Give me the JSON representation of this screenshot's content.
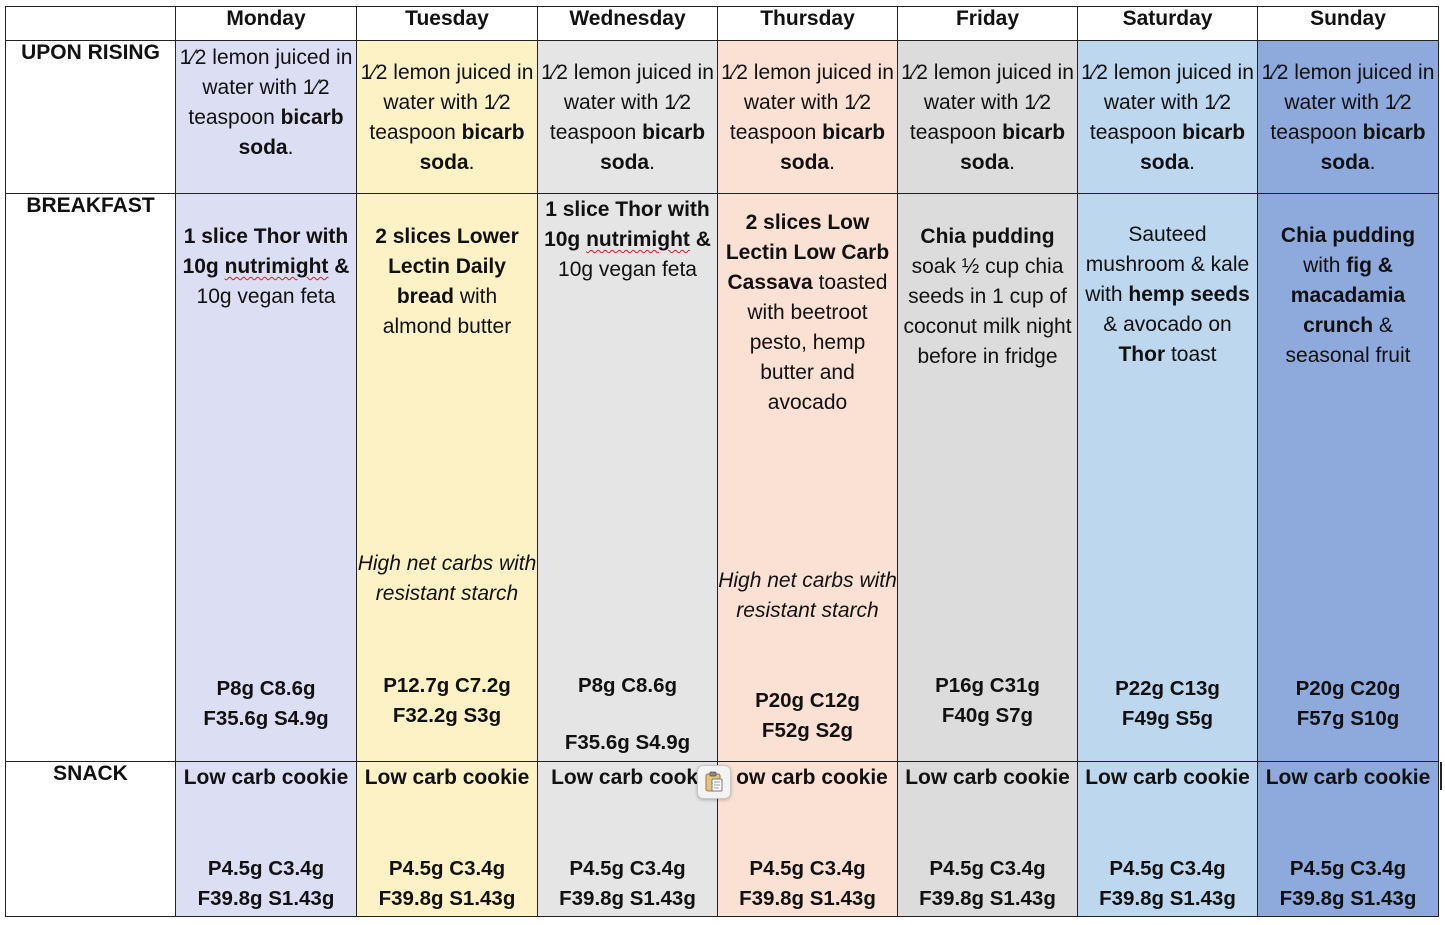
{
  "days": [
    "Monday",
    "Tuesday",
    "Wednesday",
    "Thursday",
    "Friday",
    "Saturday",
    "Sunday"
  ],
  "rows": {
    "upon_rising": "UPON RISING",
    "breakfast": "BREAKFAST",
    "snack": "SNACK"
  },
  "upon_rising": {
    "pre": "1⁄2 lemon juiced in water with 1⁄2 teaspoon ",
    "bold": "bicarb soda",
    "post": "."
  },
  "breakfast": {
    "mon": {
      "b1": "1 slice Thor with 10g ",
      "sq": "nutrimight",
      "b2": " &",
      "t1": " 10g vegan feta",
      "macro1": "P8g C8.6g",
      "macro2": "F35.6g S4.9g"
    },
    "tue": {
      "b1": "2 slices Lower Lectin Daily bread",
      "t1": " with almond butter",
      "note": "High net carbs with resistant starch",
      "macro1": "P12.7g C7.2g",
      "macro2": "F32.2g S3g"
    },
    "wed": {
      "b1": "1 slice Thor with 10g ",
      "sq": "nutrimight",
      "b2": " &",
      "t1": " 10g vegan feta",
      "macro1": "P8g C8.6g",
      "macro2": "F35.6g S4.9g"
    },
    "thu": {
      "b1": "2 slices Low Lectin Low Carb Cassava",
      "t1": " toasted with beetroot pesto, hemp butter and avocado",
      "note": "High net carbs with resistant starch",
      "macro1": "P20g C12g",
      "macro2": "F52g S2g"
    },
    "fri": {
      "b1": "Chia pudding",
      "t1": "soak ½ cup chia seeds in 1 cup of coconut milk night before in fridge",
      "macro1": "P16g C31g",
      "macro2": "F40g S7g"
    },
    "sat": {
      "t1": "Sauteed mushroom & kale with ",
      "b1": "hemp seeds",
      "t2": " & avocado on ",
      "b2": "Thor",
      "t3": " toast",
      "macro1": "P22g C13g",
      "macro2": "F49g S5g"
    },
    "sun": {
      "b1": "Chia pudding",
      "t1": " with ",
      "b2": "fig & macadamia crunch",
      "t2": " & seasonal fruit",
      "macro1": "P20g C20g",
      "macro2": "F57g S10g"
    }
  },
  "snack": {
    "title": "Low carb cookie",
    "title_wed": "Low carb cooki",
    "title_thu": "ow carb cookie",
    "macro1": "P4.5g C3.4g",
    "macro2": "F39.8g S1.43g"
  },
  "icons": {
    "paste": "clipboard-paste-icon"
  }
}
